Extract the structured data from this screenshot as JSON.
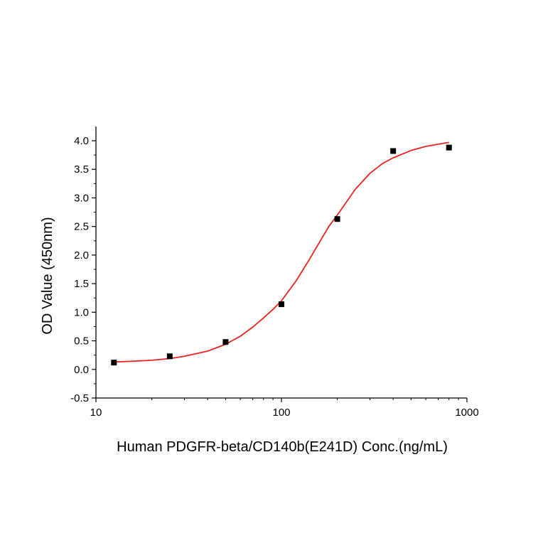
{
  "chart_data": {
    "type": "scatter",
    "xlabel": "Human PDGFR-beta/CD140b(E241D) Conc.(ng/mL)",
    "ylabel": "OD Value (450nm)",
    "x_scale": "log",
    "xlim": [
      10,
      1000
    ],
    "ylim": [
      -0.5,
      4.2
    ],
    "x_ticks": [
      10,
      100,
      1000
    ],
    "x_tick_labels": [
      "10",
      "100",
      "1000"
    ],
    "y_ticks": [
      -0.5,
      0.0,
      0.5,
      1.0,
      1.5,
      2.0,
      2.5,
      3.0,
      3.5,
      4.0
    ],
    "y_tick_labels": [
      "-0.5",
      "0.0",
      "0.5",
      "1.0",
      "1.5",
      "2.0",
      "2.5",
      "3.0",
      "3.5",
      "4.0"
    ],
    "grid": false,
    "legend": "none",
    "series": [
      {
        "type": "scatter",
        "marker": "square",
        "color": "#000000",
        "x": [
          12.5,
          25,
          50,
          100,
          200,
          400,
          800
        ],
        "y": [
          0.12,
          0.23,
          0.48,
          1.14,
          2.63,
          3.82,
          3.88
        ]
      },
      {
        "type": "line",
        "color": "#e8221e",
        "x": [
          12.5,
          15,
          20,
          25,
          30,
          40,
          50,
          60,
          70,
          80,
          90,
          100,
          120,
          140,
          160,
          180,
          200,
          250,
          300,
          350,
          400,
          500,
          600,
          700,
          800
        ],
        "y": [
          0.13,
          0.14,
          0.16,
          0.19,
          0.23,
          0.32,
          0.44,
          0.58,
          0.74,
          0.9,
          1.05,
          1.2,
          1.55,
          1.9,
          2.22,
          2.5,
          2.7,
          3.15,
          3.43,
          3.6,
          3.7,
          3.83,
          3.9,
          3.94,
          3.97
        ]
      }
    ]
  }
}
